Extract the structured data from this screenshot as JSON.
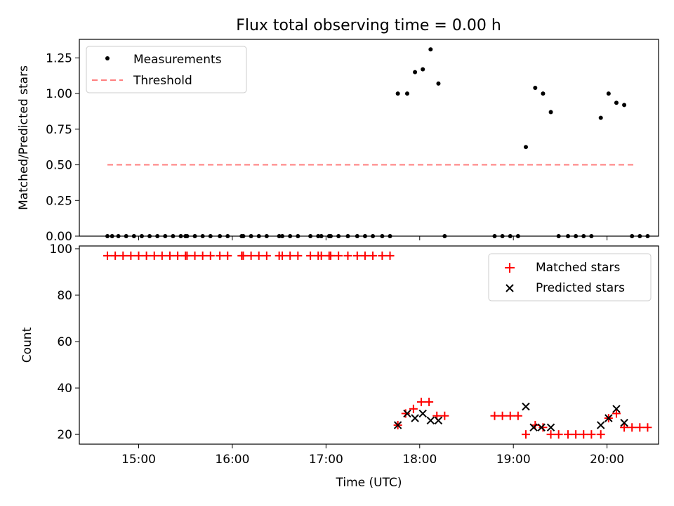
{
  "title": "Flux total observing time = 0.00 h",
  "colors": {
    "measurement": "#000000",
    "threshold": "#ff7f7f",
    "matched": "#ff0000",
    "predicted": "#000000"
  },
  "chart_data": [
    {
      "type": "scatter",
      "ylabel": "Matched/Predicted stars",
      "xlim": [
        "14:22",
        "20:33"
      ],
      "ylim": [
        0,
        1.38
      ],
      "yticks": [
        "0.00",
        "0.25",
        "0.50",
        "0.75",
        "1.00",
        "1.25"
      ],
      "legend": [
        "Measurements",
        "Threshold"
      ],
      "legend_position": "upper left",
      "threshold": {
        "name": "Threshold",
        "value": 0.5,
        "x_range": [
          "14:40",
          "20:17"
        ]
      },
      "series": [
        {
          "name": "Measurements",
          "points": [
            [
              "14:40",
              0
            ],
            [
              "14:43",
              0
            ],
            [
              "14:47",
              0
            ],
            [
              "14:52",
              0
            ],
            [
              "14:57",
              0
            ],
            [
              "15:02",
              0
            ],
            [
              "15:07",
              0
            ],
            [
              "15:12",
              0
            ],
            [
              "15:17",
              0
            ],
            [
              "15:22",
              0
            ],
            [
              "15:27",
              0
            ],
            [
              "15:30",
              0
            ],
            [
              "15:31",
              0
            ],
            [
              "15:36",
              0
            ],
            [
              "15:41",
              0
            ],
            [
              "15:46",
              0
            ],
            [
              "15:52",
              0
            ],
            [
              "15:57",
              0
            ],
            [
              "16:06",
              0
            ],
            [
              "16:07",
              0
            ],
            [
              "16:12",
              0
            ],
            [
              "16:17",
              0
            ],
            [
              "16:22",
              0
            ],
            [
              "16:30",
              0
            ],
            [
              "16:32",
              0
            ],
            [
              "16:37",
              0
            ],
            [
              "16:42",
              0
            ],
            [
              "16:50",
              0
            ],
            [
              "16:55",
              0
            ],
            [
              "16:57",
              0
            ],
            [
              "17:02",
              0
            ],
            [
              "17:03",
              0
            ],
            [
              "17:08",
              0
            ],
            [
              "17:14",
              0
            ],
            [
              "17:20",
              0
            ],
            [
              "17:25",
              0
            ],
            [
              "17:30",
              0
            ],
            [
              "17:36",
              0
            ],
            [
              "17:41",
              0
            ],
            [
              "17:46",
              1.0
            ],
            [
              "17:52",
              1.0
            ],
            [
              "17:57",
              1.15
            ],
            [
              "18:02",
              1.17
            ],
            [
              "18:07",
              1.31
            ],
            [
              "18:12",
              1.07
            ],
            [
              "18:16",
              0
            ],
            [
              "18:48",
              0
            ],
            [
              "18:53",
              0
            ],
            [
              "18:58",
              0
            ],
            [
              "19:03",
              0
            ],
            [
              "19:08",
              0.625
            ],
            [
              "19:14",
              1.04
            ],
            [
              "19:19",
              1.0
            ],
            [
              "19:24",
              0.87
            ],
            [
              "19:29",
              0
            ],
            [
              "19:35",
              0
            ],
            [
              "19:40",
              0
            ],
            [
              "19:45",
              0
            ],
            [
              "19:50",
              0
            ],
            [
              "19:56",
              0.83
            ],
            [
              "20:01",
              1.0
            ],
            [
              "20:06",
              0.935
            ],
            [
              "20:11",
              0.92
            ],
            [
              "20:16",
              0
            ],
            [
              "20:21",
              0
            ],
            [
              "20:26",
              0
            ]
          ]
        }
      ]
    },
    {
      "type": "scatter",
      "xlabel": "Time (UTC)",
      "ylabel": "Count",
      "xlim": [
        "14:22",
        "20:33"
      ],
      "ylim": [
        15.8,
        101.2
      ],
      "xticks": [
        "15:00",
        "16:00",
        "17:00",
        "18:00",
        "19:00",
        "20:00"
      ],
      "yticks": [
        "20",
        "40",
        "60",
        "80",
        "100"
      ],
      "legend": [
        "Matched stars",
        "Predicted stars"
      ],
      "legend_position": "upper right",
      "series": [
        {
          "name": "Matched stars",
          "marker": "+",
          "points": [
            [
              "14:40",
              97
            ],
            [
              "14:45",
              97
            ],
            [
              "14:50",
              97
            ],
            [
              "14:55",
              97
            ],
            [
              "15:00",
              97
            ],
            [
              "15:05",
              97
            ],
            [
              "15:10",
              97
            ],
            [
              "15:15",
              97
            ],
            [
              "15:20",
              97
            ],
            [
              "15:25",
              97
            ],
            [
              "15:30",
              97
            ],
            [
              "15:31",
              97
            ],
            [
              "15:36",
              97
            ],
            [
              "15:41",
              97
            ],
            [
              "15:46",
              97
            ],
            [
              "15:52",
              97
            ],
            [
              "15:57",
              97
            ],
            [
              "16:06",
              97
            ],
            [
              "16:07",
              97
            ],
            [
              "16:12",
              97
            ],
            [
              "16:17",
              97
            ],
            [
              "16:22",
              97
            ],
            [
              "16:30",
              97
            ],
            [
              "16:32",
              97
            ],
            [
              "16:37",
              97
            ],
            [
              "16:42",
              97
            ],
            [
              "16:50",
              97
            ],
            [
              "16:55",
              97
            ],
            [
              "16:57",
              97
            ],
            [
              "17:02",
              97
            ],
            [
              "17:03",
              97
            ],
            [
              "17:08",
              97
            ],
            [
              "17:14",
              97
            ],
            [
              "17:20",
              97
            ],
            [
              "17:25",
              97
            ],
            [
              "17:30",
              97
            ],
            [
              "17:36",
              97
            ],
            [
              "17:41",
              97
            ],
            [
              "17:46",
              24
            ],
            [
              "17:51",
              29
            ],
            [
              "17:56",
              31
            ],
            [
              "18:01",
              34
            ],
            [
              "18:06",
              34
            ],
            [
              "18:11",
              28
            ],
            [
              "18:16",
              28
            ],
            [
              "18:48",
              28
            ],
            [
              "18:53",
              28
            ],
            [
              "18:58",
              28
            ],
            [
              "19:03",
              28
            ],
            [
              "19:08",
              20
            ],
            [
              "19:14",
              24
            ],
            [
              "19:19",
              23
            ],
            [
              "19:24",
              20
            ],
            [
              "19:29",
              20
            ],
            [
              "19:35",
              20
            ],
            [
              "19:40",
              20
            ],
            [
              "19:45",
              20
            ],
            [
              "19:50",
              20
            ],
            [
              "19:56",
              20
            ],
            [
              "20:01",
              27
            ],
            [
              "20:06",
              29
            ],
            [
              "20:11",
              23
            ],
            [
              "20:16",
              23
            ],
            [
              "20:21",
              23
            ],
            [
              "20:26",
              23
            ]
          ]
        },
        {
          "name": "Predicted stars",
          "marker": "x",
          "points": [
            [
              "17:46",
              24
            ],
            [
              "17:52",
              29
            ],
            [
              "17:57",
              27
            ],
            [
              "18:02",
              29
            ],
            [
              "18:07",
              26
            ],
            [
              "18:12",
              26
            ],
            [
              "19:08",
              32
            ],
            [
              "19:13",
              23
            ],
            [
              "19:18",
              23
            ],
            [
              "19:24",
              23
            ],
            [
              "19:56",
              24
            ],
            [
              "20:01",
              27
            ],
            [
              "20:06",
              31
            ],
            [
              "20:11",
              25
            ]
          ]
        }
      ]
    }
  ]
}
